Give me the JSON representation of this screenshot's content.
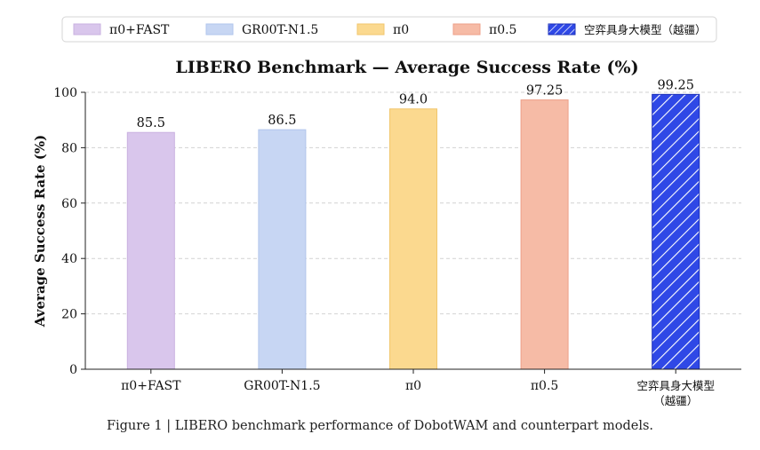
{
  "chart_data": {
    "type": "bar",
    "title": "LIBERO Benchmark — Average Success Rate (%)",
    "xlabel": "",
    "ylabel": "Average Success Rate (%)",
    "ylim": [
      0,
      100
    ],
    "yticks": [
      0,
      20,
      40,
      60,
      80,
      100
    ],
    "grid": true,
    "legend_position": "top",
    "categories": [
      "π0+FAST",
      "GR00T-N1.5",
      "π0",
      "π0.5",
      "空弈具身大模型（越疆）"
    ],
    "category_label_lines": [
      [
        "π0+FAST"
      ],
      [
        "GR00T-N1.5"
      ],
      [
        "π0"
      ],
      [
        "π0.5"
      ],
      [
        "空弈具身大模型",
        "（越疆）"
      ]
    ],
    "values": [
      85.5,
      86.5,
      94.0,
      97.25,
      99.25
    ],
    "value_labels": [
      "85.5",
      "86.5",
      "94.0",
      "97.25",
      "99.25"
    ],
    "legend": [
      "π0+FAST",
      "GR00T-N1.5",
      "π0",
      "π0.5",
      "空弈具身大模型（越疆）"
    ],
    "colors": [
      "#d9c6ec",
      "#c7d6f3",
      "#fbd98f",
      "#f6bba6",
      "#2f48e6"
    ],
    "edge_colors": [
      "#c9b1e0",
      "#b2c6ec",
      "#f1c66c",
      "#ee9f88",
      "#1b2fb8"
    ],
    "hatch": [
      false,
      false,
      false,
      false,
      true
    ]
  },
  "caption": "Figure 1 | LIBERO benchmark performance of DobotWAM and counterpart models."
}
